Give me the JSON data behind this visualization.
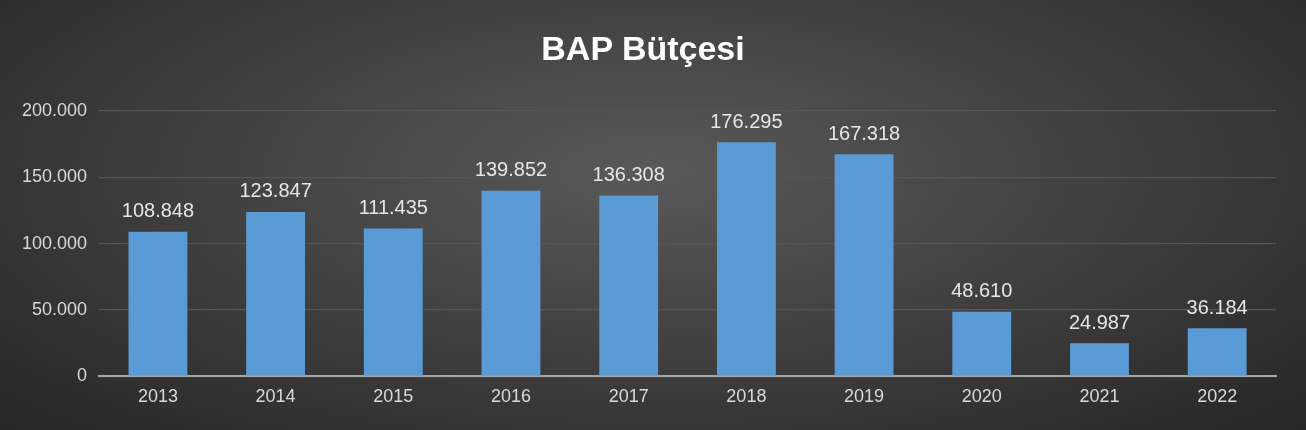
{
  "chart_data": {
    "type": "bar",
    "title": "BAP Bütçesi",
    "categories": [
      "2013",
      "2014",
      "2015",
      "2016",
      "2017",
      "2018",
      "2019",
      "2020",
      "2021",
      "2022"
    ],
    "values": [
      108848,
      123847,
      111435,
      139852,
      136308,
      176295,
      167318,
      48610,
      24987,
      36184
    ],
    "value_labels": [
      "108.848",
      "123.847",
      "111.435",
      "139.852",
      "136.308",
      "176.295",
      "167.318",
      "48.610",
      "24.987",
      "36.184"
    ],
    "color": "#5b9bd5",
    "ylim": [
      0,
      200000
    ],
    "yticks": [
      {
        "value": 0,
        "label": "0"
      },
      {
        "value": 50000,
        "label": "50.000"
      },
      {
        "value": 100000,
        "label": "100.000"
      },
      {
        "value": 150000,
        "label": "150.000"
      },
      {
        "value": 200000,
        "label": "200.000"
      }
    ],
    "grid": "y",
    "legend": false
  }
}
